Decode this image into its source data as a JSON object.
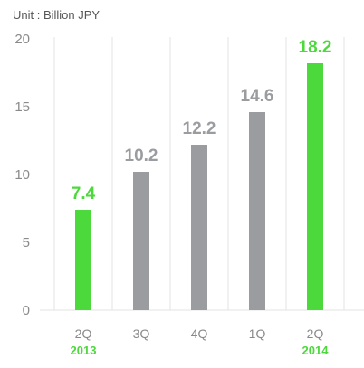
{
  "chart_data": {
    "type": "bar",
    "unit_label": "Unit : Billion JPY",
    "categories": [
      "2Q",
      "3Q",
      "4Q",
      "1Q",
      "2Q"
    ],
    "year_labels": [
      "2013",
      "",
      "",
      "",
      "2014"
    ],
    "values": [
      7.4,
      10.2,
      12.2,
      14.6,
      18.2
    ],
    "value_labels": [
      "7.4",
      "10.2",
      "12.2",
      "14.6",
      "18.2"
    ],
    "highlight": [
      true,
      false,
      false,
      false,
      true
    ],
    "ylim": [
      0,
      20
    ],
    "yticks": [
      0,
      5,
      10,
      15,
      20
    ],
    "ytick_labels": [
      "0",
      "5",
      "10",
      "15",
      "20"
    ],
    "grid": "x",
    "colors": {
      "highlight": "#4cd93c",
      "normal": "#9a9ca0",
      "grid": "#e3e3e3",
      "axis_text": "#8a8a8a"
    }
  }
}
